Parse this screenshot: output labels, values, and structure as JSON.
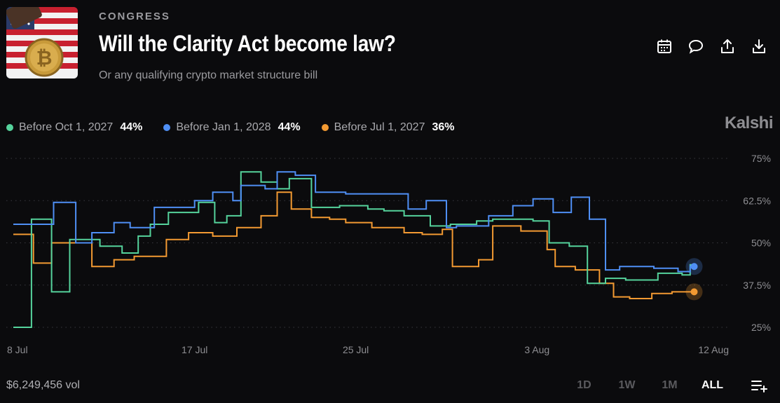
{
  "header": {
    "category": "CONGRESS",
    "title": "Will the Clarity Act become law?",
    "subtitle": "Or any qualifying crypto market structure bill"
  },
  "brand": "Kalshi",
  "actions": [
    "calendar-icon",
    "comment-icon",
    "share-icon",
    "download-icon"
  ],
  "legend": [
    {
      "label": "Before Oct 1, 2027",
      "pct": "44%",
      "color": "#55d39c"
    },
    {
      "label": "Before Jan 1, 2028",
      "pct": "44%",
      "color": "#4f8ff5"
    },
    {
      "label": "Before Jul 1, 2027",
      "pct": "36%",
      "color": "#f39a32"
    }
  ],
  "footer": {
    "volume": "$6,249,456 vol",
    "ranges": [
      "1D",
      "1W",
      "1M",
      "ALL"
    ],
    "active_range": "ALL"
  },
  "chart_data": {
    "type": "line",
    "y_ticks": [
      "75%",
      "62.5%",
      "50%",
      "37.5%",
      "25%"
    ],
    "ylim": [
      25,
      75
    ],
    "xlim": [
      8,
      43
    ],
    "x_ticks": [
      {
        "value": 8,
        "label": "8 Jul"
      },
      {
        "value": 17,
        "label": "17 Jul"
      },
      {
        "value": 25,
        "label": "25 Jul"
      },
      {
        "value": 34,
        "label": "3 Aug"
      },
      {
        "value": 43,
        "label": "12 Aug"
      }
    ],
    "grid": true,
    "legend": "top-left",
    "series": [
      {
        "name": "Before Oct 1, 2027",
        "color": "#55d39c",
        "points": [
          [
            8,
            25
          ],
          [
            8.9,
            25
          ],
          [
            8.9,
            57
          ],
          [
            9.9,
            57
          ],
          [
            9.9,
            35.5
          ],
          [
            10.8,
            35.5
          ],
          [
            10.8,
            51
          ],
          [
            12.3,
            51
          ],
          [
            12.3,
            49
          ],
          [
            13.4,
            49
          ],
          [
            13.4,
            47
          ],
          [
            14.2,
            47
          ],
          [
            14.2,
            52
          ],
          [
            14.8,
            52
          ],
          [
            14.8,
            55.5
          ],
          [
            15.7,
            55.5
          ],
          [
            15.7,
            59
          ],
          [
            17.2,
            59
          ],
          [
            17.2,
            62
          ],
          [
            18,
            62
          ],
          [
            18,
            56
          ],
          [
            18.6,
            56
          ],
          [
            18.6,
            58
          ],
          [
            19.3,
            58
          ],
          [
            19.3,
            71
          ],
          [
            20.3,
            71
          ],
          [
            20.3,
            68
          ],
          [
            21.1,
            68
          ],
          [
            21.1,
            66
          ],
          [
            21.7,
            66
          ],
          [
            21.7,
            69
          ],
          [
            22.8,
            69
          ],
          [
            22.8,
            60.5
          ],
          [
            24.2,
            60.5
          ],
          [
            24.2,
            61
          ],
          [
            25.6,
            61
          ],
          [
            25.6,
            60
          ],
          [
            26.4,
            60
          ],
          [
            26.4,
            59.5
          ],
          [
            27.4,
            59.5
          ],
          [
            27.4,
            58
          ],
          [
            28.7,
            58
          ],
          [
            28.7,
            55
          ],
          [
            29.7,
            55
          ],
          [
            29.7,
            55.5
          ],
          [
            31,
            55.5
          ],
          [
            31,
            56.5
          ],
          [
            31.8,
            56.5
          ],
          [
            31.8,
            57
          ],
          [
            33.8,
            57
          ],
          [
            33.8,
            56.5
          ],
          [
            34.6,
            56.5
          ],
          [
            34.6,
            50
          ],
          [
            35.6,
            50
          ],
          [
            35.6,
            49
          ],
          [
            36.5,
            49
          ],
          [
            36.5,
            38
          ],
          [
            37.4,
            38
          ],
          [
            37.4,
            39.5
          ],
          [
            38.4,
            39.5
          ],
          [
            38.4,
            39
          ],
          [
            40,
            39
          ],
          [
            40,
            41
          ],
          [
            41.2,
            41
          ],
          [
            41.2,
            40.5
          ],
          [
            41.6,
            40.5
          ],
          [
            41.6,
            43.5
          ],
          [
            41.8,
            43.5
          ]
        ]
      },
      {
        "name": "Before Jan 1, 2028",
        "color": "#4f8ff5",
        "points": [
          [
            8,
            55.5
          ],
          [
            10,
            55.5
          ],
          [
            10,
            62
          ],
          [
            11.1,
            62
          ],
          [
            11.1,
            50
          ],
          [
            11.9,
            50
          ],
          [
            11.9,
            53
          ],
          [
            13,
            53
          ],
          [
            13,
            56
          ],
          [
            13.8,
            56
          ],
          [
            13.8,
            54.5
          ],
          [
            15,
            54.5
          ],
          [
            15,
            60.5
          ],
          [
            17,
            60.5
          ],
          [
            17,
            62.5
          ],
          [
            17.9,
            62.5
          ],
          [
            17.9,
            65
          ],
          [
            18.9,
            65
          ],
          [
            18.9,
            62.5
          ],
          [
            19.3,
            62.5
          ],
          [
            19.3,
            67
          ],
          [
            20.5,
            67
          ],
          [
            20.5,
            66
          ],
          [
            21.1,
            66
          ],
          [
            21.1,
            71
          ],
          [
            22,
            71
          ],
          [
            22,
            70
          ],
          [
            23,
            70
          ],
          [
            23,
            65
          ],
          [
            24.5,
            65
          ],
          [
            24.5,
            64.5
          ],
          [
            27.6,
            64.5
          ],
          [
            27.6,
            60
          ],
          [
            28.5,
            60
          ],
          [
            28.5,
            62.5
          ],
          [
            29.5,
            62.5
          ],
          [
            29.5,
            54.5
          ],
          [
            30,
            54.5
          ],
          [
            30,
            55
          ],
          [
            31.6,
            55
          ],
          [
            31.6,
            58
          ],
          [
            32.8,
            58
          ],
          [
            32.8,
            61
          ],
          [
            33.8,
            61
          ],
          [
            33.8,
            63
          ],
          [
            34.8,
            63
          ],
          [
            34.8,
            59
          ],
          [
            35.7,
            59
          ],
          [
            35.7,
            63.5
          ],
          [
            36.6,
            63.5
          ],
          [
            36.6,
            57
          ],
          [
            37.4,
            57
          ],
          [
            37.4,
            42
          ],
          [
            38.1,
            42
          ],
          [
            38.1,
            43
          ],
          [
            39.8,
            43
          ],
          [
            39.8,
            42.5
          ],
          [
            41,
            42.5
          ],
          [
            41,
            41.5
          ],
          [
            41.6,
            41.5
          ],
          [
            41.6,
            43
          ],
          [
            41.8,
            43
          ]
        ]
      },
      {
        "name": "Before Jul 1, 2027",
        "color": "#f39a32",
        "points": [
          [
            8,
            52.5
          ],
          [
            9,
            52.5
          ],
          [
            9,
            44
          ],
          [
            9.9,
            44
          ],
          [
            9.9,
            50
          ],
          [
            11.9,
            50
          ],
          [
            11.9,
            43
          ],
          [
            13,
            43
          ],
          [
            13,
            45
          ],
          [
            14,
            45
          ],
          [
            14,
            46
          ],
          [
            15.6,
            46
          ],
          [
            15.6,
            51
          ],
          [
            16.7,
            51
          ],
          [
            16.7,
            53
          ],
          [
            17.9,
            53
          ],
          [
            17.9,
            52
          ],
          [
            19.1,
            52
          ],
          [
            19.1,
            54.5
          ],
          [
            20.3,
            54.5
          ],
          [
            20.3,
            58
          ],
          [
            21.1,
            58
          ],
          [
            21.1,
            65
          ],
          [
            21.8,
            65
          ],
          [
            21.8,
            60
          ],
          [
            22.8,
            60
          ],
          [
            22.8,
            57.5
          ],
          [
            23.7,
            57.5
          ],
          [
            23.7,
            57
          ],
          [
            24.5,
            57
          ],
          [
            24.5,
            56
          ],
          [
            25.8,
            56
          ],
          [
            25.8,
            54.5
          ],
          [
            27.4,
            54.5
          ],
          [
            27.4,
            53
          ],
          [
            28.3,
            53
          ],
          [
            28.3,
            52.5
          ],
          [
            29.3,
            52.5
          ],
          [
            29.3,
            54
          ],
          [
            29.8,
            54
          ],
          [
            29.8,
            43
          ],
          [
            31.1,
            43
          ],
          [
            31.1,
            45
          ],
          [
            31.8,
            45
          ],
          [
            31.8,
            55
          ],
          [
            33.2,
            55
          ],
          [
            33.2,
            53.5
          ],
          [
            34.5,
            53.5
          ],
          [
            34.5,
            48
          ],
          [
            34.9,
            48
          ],
          [
            34.9,
            43
          ],
          [
            35.9,
            43
          ],
          [
            35.9,
            42
          ],
          [
            37.1,
            42
          ],
          [
            37.1,
            38
          ],
          [
            37.8,
            38
          ],
          [
            37.8,
            34
          ],
          [
            38.6,
            34
          ],
          [
            38.6,
            33.5
          ],
          [
            39.7,
            33.5
          ],
          [
            39.7,
            35
          ],
          [
            40.7,
            35
          ],
          [
            40.7,
            35.5
          ],
          [
            41.8,
            35.5
          ]
        ]
      }
    ]
  }
}
